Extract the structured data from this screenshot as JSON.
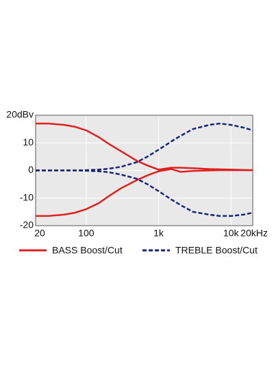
{
  "chart_data": {
    "type": "line",
    "log_x": true,
    "grid": true,
    "x": [
      20,
      30,
      50,
      70,
      100,
      150,
      200,
      300,
      500,
      700,
      1000,
      1500,
      2000,
      3000,
      5000,
      7000,
      10000,
      15000,
      20000
    ],
    "xlim": [
      20,
      20000
    ],
    "xticks": [
      20,
      100,
      {
        "value": 1000,
        "label": "1k"
      },
      {
        "value": 10000,
        "label": "10k"
      },
      {
        "value": 20000,
        "label": "20kHz"
      }
    ],
    "ylim": [
      -20,
      20
    ],
    "yticks": [
      -20,
      -10,
      0,
      10,
      {
        "value": 20,
        "label": "20dBv"
      }
    ],
    "series": [
      {
        "name": "BASS Boost/Cut",
        "color": "#e02020",
        "dashed": false,
        "values": [
          [
            17,
            17,
            16.5,
            15.8,
            14.5,
            12,
            9.8,
            7,
            3.5,
            1.8,
            0.3,
            1,
            1,
            0.8,
            0.5,
            0.4,
            0.3,
            0.2,
            0.1
          ],
          [
            -16.5,
            -16.5,
            -16,
            -15.3,
            -14,
            -11.8,
            -9.5,
            -6.5,
            -3.5,
            -1.8,
            -0.3,
            0.5,
            -0.5,
            -0.2,
            0,
            0.1,
            0.1,
            0.1,
            0.1
          ]
        ]
      },
      {
        "name": "TREBLE Boost/Cut",
        "color": "#1a237e",
        "dashed": true,
        "values": [
          [
            0,
            0,
            0,
            0,
            0.1,
            0.3,
            0.6,
            1.3,
            3,
            5,
            7.5,
            10.5,
            12.5,
            15,
            16.5,
            17,
            16.5,
            15.5,
            14.5
          ],
          [
            0,
            0,
            0,
            0,
            -0.1,
            -0.3,
            -0.6,
            -1.5,
            -3,
            -5,
            -7.5,
            -10.5,
            -12.5,
            -15,
            -16,
            -16.5,
            -16.5,
            -16,
            -15.3
          ]
        ]
      }
    ]
  }
}
